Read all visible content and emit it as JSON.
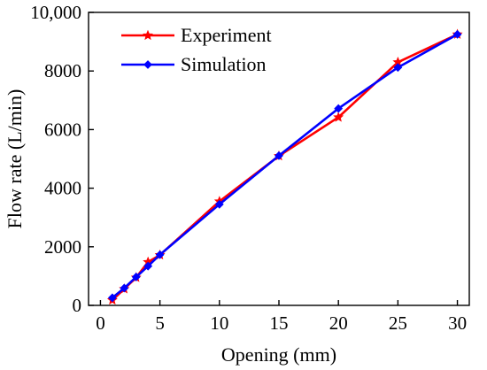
{
  "chart_data": {
    "type": "line",
    "title": "",
    "xlabel": "Opening (mm)",
    "ylabel": "Flow rate (L/min)",
    "xlim": [
      -1,
      31
    ],
    "ylim": [
      0,
      10000
    ],
    "xticks": [
      0,
      5,
      10,
      15,
      20,
      25,
      30
    ],
    "yticks": [
      0,
      2000,
      4000,
      6000,
      8000,
      10000
    ],
    "xtick_labels": [
      "0",
      "5",
      "10",
      "15",
      "20",
      "25",
      "30"
    ],
    "ytick_labels": [
      "0",
      "2000",
      "4000",
      "6000",
      "8000",
      "10,000"
    ],
    "grid": false,
    "legend_position": "top-left",
    "series": [
      {
        "name": "Experiment",
        "color": "#ff0000",
        "marker": "star",
        "x": [
          1,
          2,
          3,
          4,
          5,
          10,
          15,
          20,
          25,
          30
        ],
        "y": [
          180,
          560,
          950,
          1480,
          1720,
          3550,
          5100,
          6420,
          8300,
          9250
        ]
      },
      {
        "name": "Simulation",
        "color": "#0000ff",
        "marker": "diamond",
        "x": [
          1,
          2,
          3,
          4,
          5,
          10,
          15,
          20,
          25,
          30
        ],
        "y": [
          260,
          590,
          970,
          1340,
          1730,
          3450,
          5110,
          6720,
          8120,
          9250
        ]
      }
    ]
  }
}
